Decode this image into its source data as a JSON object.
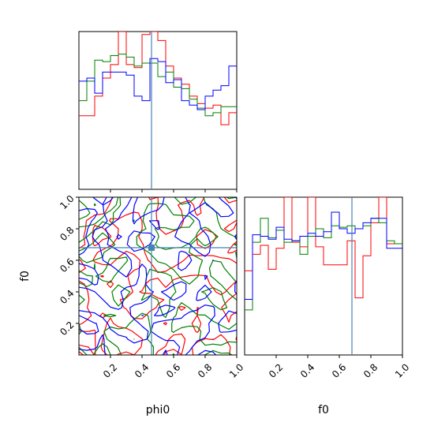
{
  "chart_data": {
    "type": "corner",
    "parameters": [
      "phi0",
      "f0"
    ],
    "truth": {
      "phi0": 0.46,
      "f0": 0.68
    },
    "truth_color": "#4682b4",
    "series_colors": [
      "#ff0000",
      "#008000",
      "#0000ff"
    ],
    "axes": {
      "phi0": {
        "xlabel": "phi0",
        "xlim": [
          0,
          1
        ],
        "ticks": [
          0.2,
          0.4,
          0.6,
          0.8,
          1.0
        ],
        "tick_labels": [
          "0.2",
          "0.4",
          "0.6",
          "0.8",
          "1.0"
        ]
      },
      "f0": {
        "xlabel": "f0",
        "ylabel": "f0",
        "xlim": [
          0,
          1
        ],
        "ylim": [
          0,
          1
        ],
        "ticks": [
          0.2,
          0.4,
          0.6,
          0.8,
          1.0
        ],
        "tick_labels": [
          "0.2",
          "0.4",
          "0.6",
          "0.8",
          "1.0"
        ]
      }
    },
    "histograms": {
      "phi0": {
        "bin_edges": [
          0,
          0.05,
          0.1,
          0.15,
          0.2,
          0.25,
          0.3,
          0.35,
          0.4,
          0.45,
          0.5,
          0.55,
          0.6,
          0.65,
          0.7,
          0.75,
          0.8,
          0.85,
          0.9,
          0.95,
          1.0
        ],
        "series": [
          {
            "color": "#ff0000",
            "values": [
              0.49,
              0.49,
              0.62,
              0.74,
              0.83,
              1.05,
              0.83,
              0.81,
              1.03,
              1.05,
              0.99,
              0.82,
              0.74,
              0.7,
              0.62,
              0.57,
              0.54,
              0.56,
              0.43,
              0.51
            ]
          },
          {
            "color": "#008000",
            "values": [
              0.59,
              0.72,
              0.86,
              0.85,
              0.89,
              0.9,
              0.88,
              0.82,
              0.84,
              0.84,
              0.75,
              0.78,
              0.68,
              0.67,
              0.6,
              0.54,
              0.49,
              0.51,
              0.55,
              0.55
            ]
          },
          {
            "color": "#0000ff",
            "values": [
              0.72,
              0.74,
              0.64,
              0.78,
              0.78,
              0.78,
              0.76,
              0.62,
              0.59,
              0.87,
              0.85,
              0.71,
              0.73,
              0.59,
              0.56,
              0.53,
              0.62,
              0.66,
              0.69,
              0.82
            ]
          }
        ]
      },
      "f0": {
        "bin_edges": [
          0,
          0.05,
          0.1,
          0.15,
          0.2,
          0.25,
          0.3,
          0.35,
          0.4,
          0.45,
          0.5,
          0.55,
          0.6,
          0.65,
          0.7,
          0.75,
          0.8,
          0.85,
          0.9,
          0.95,
          1.0
        ],
        "series": [
          {
            "color": "#ff0000",
            "values": [
              0.56,
              0.67,
              0.73,
              0.57,
              0.71,
              1.05,
              0.75,
              0.72,
              1.05,
              0.72,
              0.6,
              0.6,
              0.6,
              0.76,
              0.38,
              0.66,
              0.88,
              1.05,
              0.74,
              0.74
            ]
          },
          {
            "color": "#008000",
            "values": [
              0.3,
              0.75,
              0.91,
              0.78,
              0.83,
              0.75,
              0.76,
              0.67,
              0.79,
              0.84,
              0.78,
              0.86,
              0.85,
              0.86,
              0.84,
              0.86,
              0.91,
              0.88,
              0.76,
              0.74
            ]
          },
          {
            "color": "#0000ff",
            "values": [
              0.37,
              0.8,
              0.79,
              0.77,
              0.85,
              0.77,
              0.76,
              0.79,
              0.81,
              0.79,
              0.82,
              0.95,
              0.84,
              0.81,
              0.84,
              0.88,
              0.91,
              0.91,
              0.71,
              0.71
            ]
          }
        ]
      }
    },
    "contours": {
      "type": "contour",
      "xlim": [
        0,
        1
      ],
      "ylim": [
        0,
        1
      ],
      "levels": [
        0.45,
        0.62
      ],
      "grid_size": 20,
      "series_colors": [
        "#ff0000",
        "#008000",
        "#0000ff"
      ]
    }
  }
}
